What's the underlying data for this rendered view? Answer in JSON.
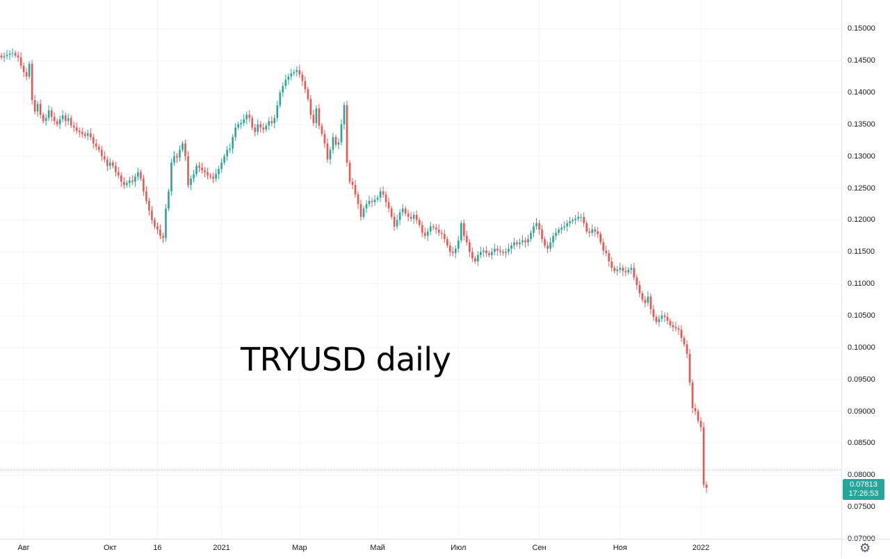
{
  "chart_title": "TRYUSD daily",
  "colors": {
    "up": "#26a69a",
    "down": "#ef5350",
    "grid": "#f0f3fa",
    "axis_text": "#131722",
    "last_line": "#ef5350"
  },
  "last_price_tag": {
    "price": "0.07813",
    "countdown": "17:26:53"
  },
  "settings_icon": "gear-icon",
  "chart_data": {
    "type": "candlestick",
    "title": "",
    "ylim": [
      0.07,
      0.1545
    ],
    "y_ticks": [
      "0.15000",
      "0.14500",
      "0.14000",
      "0.13500",
      "0.13000",
      "0.12500",
      "0.12000",
      "0.11500",
      "0.11000",
      "0.10500",
      "0.10000",
      "0.09500",
      "0.09000",
      "0.08500",
      "0.08000",
      "0.07500",
      "0.07000"
    ],
    "x_ticks": [
      "Авг",
      "Окт",
      "16",
      "2021",
      "Мар",
      "Май",
      "Июл",
      "Сен",
      "Ноя",
      "2022"
    ],
    "x_tick_index": [
      8,
      39,
      56,
      79,
      107,
      135,
      164,
      193,
      222,
      251
    ],
    "last_price": 0.07813,
    "series": [
      {
        "close": [
          0.1455,
          0.1457,
          0.1459,
          0.1461,
          0.1462,
          0.1458,
          0.1455,
          0.1442,
          0.1432,
          0.1425,
          0.1445,
          0.1388,
          0.137,
          0.1382,
          0.1365,
          0.1355,
          0.136,
          0.1372,
          0.1362,
          0.1355,
          0.135,
          0.1358,
          0.1364,
          0.1355,
          0.136,
          0.1348,
          0.1345,
          0.134,
          0.1338,
          0.1335,
          0.1332,
          0.1336,
          0.133,
          0.132,
          0.1315,
          0.131,
          0.13,
          0.1295,
          0.1285,
          0.129,
          0.1285,
          0.1275,
          0.127,
          0.126,
          0.1255,
          0.1258,
          0.1262,
          0.126,
          0.1268,
          0.1275,
          0.1265,
          0.1245,
          0.123,
          0.1215,
          0.12,
          0.119,
          0.1185,
          0.1175,
          0.1172,
          0.1218,
          0.1245,
          0.129,
          0.13,
          0.1298,
          0.131,
          0.132,
          0.13,
          0.1255,
          0.1265,
          0.1272,
          0.1285,
          0.1282,
          0.1278,
          0.1275,
          0.127,
          0.1268,
          0.1265,
          0.1272,
          0.128,
          0.129,
          0.13,
          0.131,
          0.1312,
          0.133,
          0.1345,
          0.135,
          0.1352,
          0.1358,
          0.1365,
          0.136,
          0.1345,
          0.1338,
          0.135,
          0.1345,
          0.1342,
          0.1348,
          0.1355,
          0.1352,
          0.136,
          0.138,
          0.14,
          0.141,
          0.142,
          0.1425,
          0.143,
          0.1432,
          0.1435,
          0.1428,
          0.1418,
          0.1405,
          0.139,
          0.1365,
          0.1352,
          0.1375,
          0.1348,
          0.1335,
          0.132,
          0.1295,
          0.131,
          0.133,
          0.1318,
          0.1322,
          0.135,
          0.138,
          0.129,
          0.126,
          0.1255,
          0.124,
          0.1225,
          0.1205,
          0.1218,
          0.1225,
          0.123,
          0.1228,
          0.1232,
          0.1235,
          0.1245,
          0.124,
          0.1228,
          0.1218,
          0.1205,
          0.119,
          0.12,
          0.1212,
          0.1218,
          0.121,
          0.1205,
          0.1202,
          0.1208,
          0.12,
          0.1192,
          0.118,
          0.1175,
          0.1182,
          0.119,
          0.1188,
          0.1185,
          0.118,
          0.1178,
          0.117,
          0.116,
          0.115,
          0.1148,
          0.1155,
          0.1168,
          0.1195,
          0.1175,
          0.1165,
          0.115,
          0.114,
          0.1135,
          0.1145,
          0.115,
          0.1152,
          0.1148,
          0.1145,
          0.115,
          0.1155,
          0.1152,
          0.115,
          0.1148,
          0.115,
          0.1155,
          0.116,
          0.1165,
          0.1162,
          0.1165,
          0.1168,
          0.1165,
          0.117,
          0.118,
          0.119,
          0.1195,
          0.1185,
          0.117,
          0.116,
          0.1155,
          0.1165,
          0.1175,
          0.118,
          0.1185,
          0.1188,
          0.119,
          0.1195,
          0.1198,
          0.12,
          0.1202,
          0.1205,
          0.1205,
          0.1195,
          0.1182,
          0.118,
          0.1185,
          0.1182,
          0.1178,
          0.1165,
          0.1152,
          0.1148,
          0.1135,
          0.1125,
          0.112,
          0.1122,
          0.1125,
          0.112,
          0.1118,
          0.1122,
          0.1125,
          0.111,
          0.1098,
          0.1085,
          0.1075,
          0.107,
          0.108,
          0.106,
          0.1048,
          0.104,
          0.1045,
          0.105,
          0.1048,
          0.1042,
          0.1035,
          0.1032,
          0.103,
          0.1028,
          0.1015,
          0.1005,
          0.099,
          0.0945,
          0.0905,
          0.09,
          0.0885,
          0.0875,
          0.0785,
          0.078
        ]
      }
    ]
  }
}
